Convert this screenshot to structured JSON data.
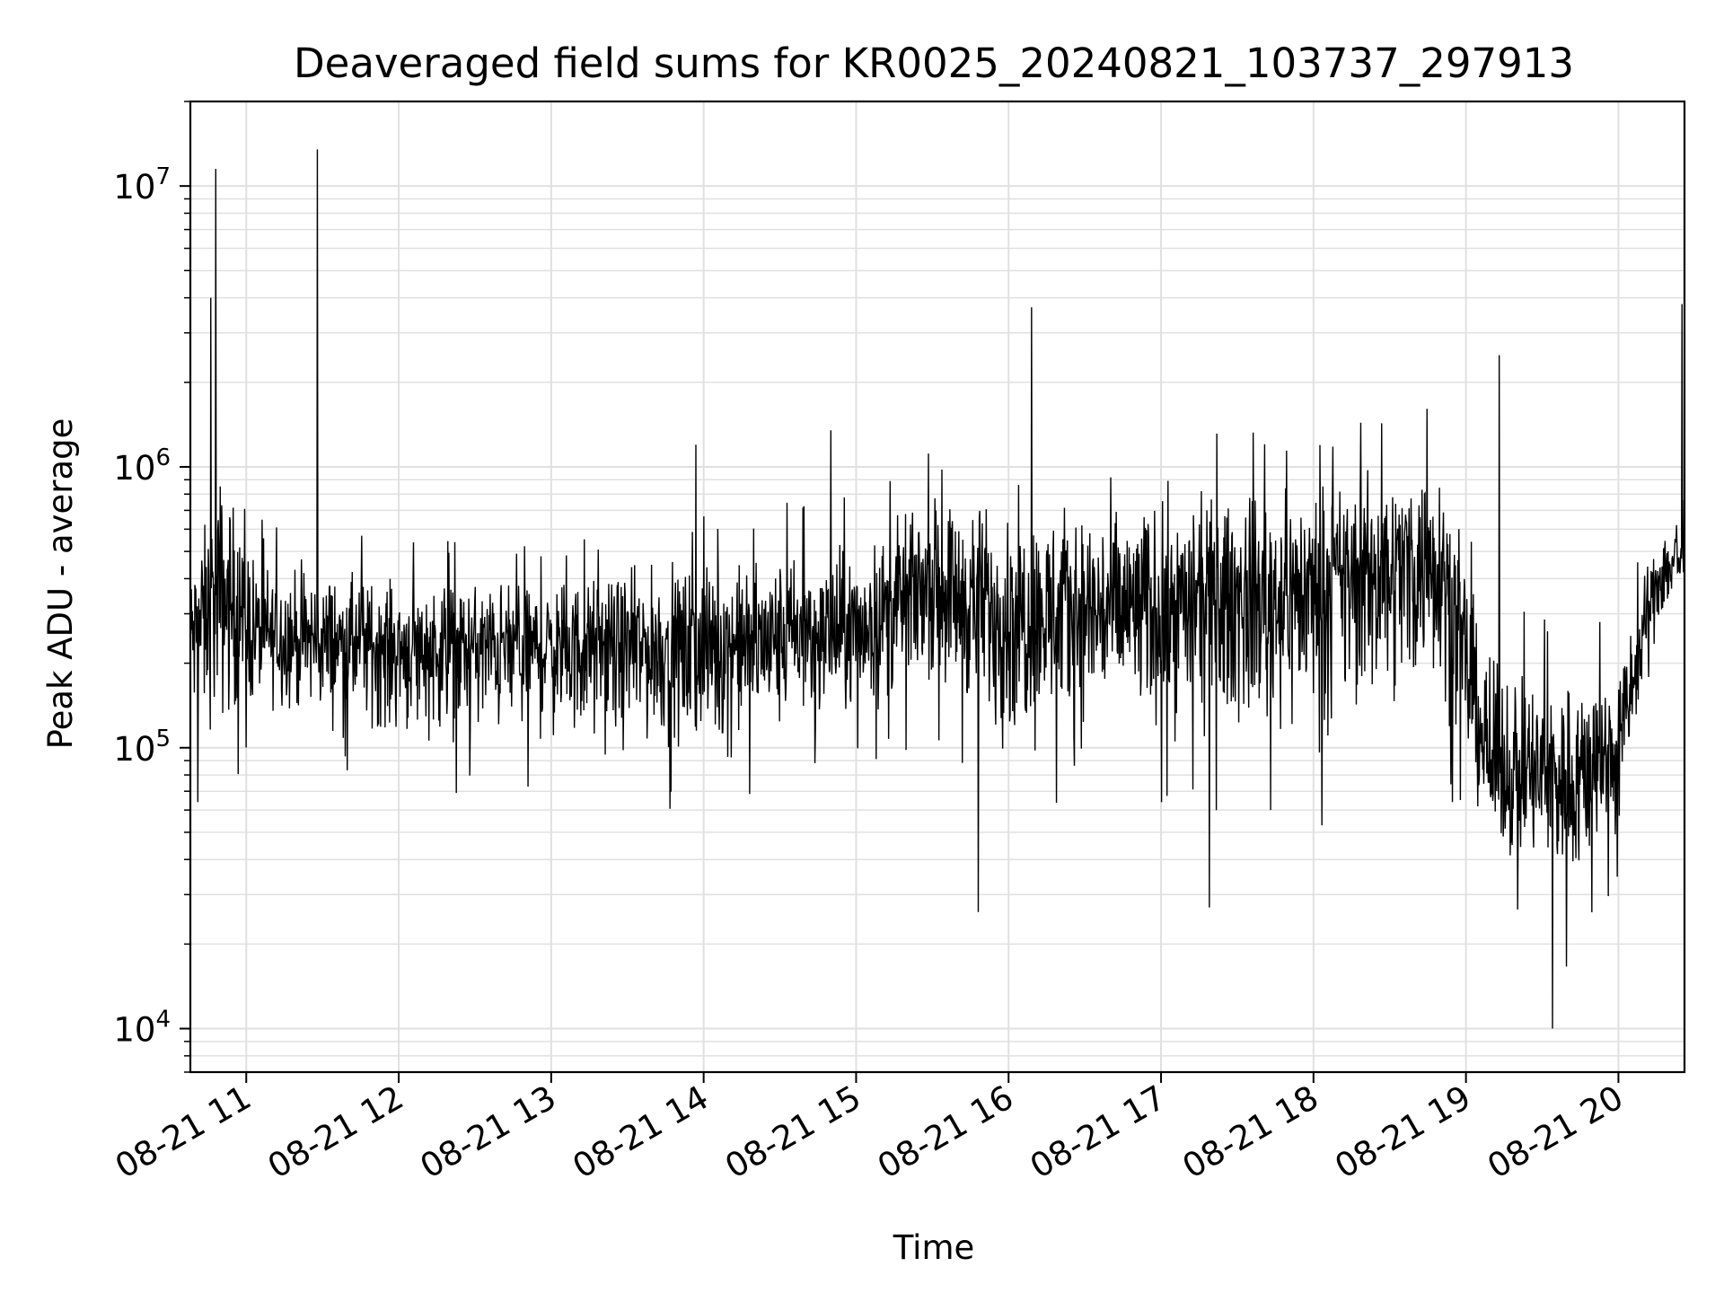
{
  "chart_data": {
    "type": "line",
    "title": "Deaveraged field sums for KR0025_20240821_103737_297913",
    "xlabel": "Time",
    "ylabel": "Peak ADU - average",
    "yscale": "log",
    "ylim": [
      7000,
      20000000
    ],
    "xlim": [
      "2024-08-21 10:38",
      "2024-08-21 20:26"
    ],
    "grid": true,
    "line_color": "#000000",
    "grid_color": "#e0e0e0",
    "x_ticks": [
      {
        "value": "2024-08-21 11:00",
        "label": "08-21 11"
      },
      {
        "value": "2024-08-21 12:00",
        "label": "08-21 12"
      },
      {
        "value": "2024-08-21 13:00",
        "label": "08-21 13"
      },
      {
        "value": "2024-08-21 14:00",
        "label": "08-21 14"
      },
      {
        "value": "2024-08-21 15:00",
        "label": "08-21 15"
      },
      {
        "value": "2024-08-21 16:00",
        "label": "08-21 16"
      },
      {
        "value": "2024-08-21 17:00",
        "label": "08-21 17"
      },
      {
        "value": "2024-08-21 18:00",
        "label": "08-21 18"
      },
      {
        "value": "2024-08-21 19:00",
        "label": "08-21 19"
      },
      {
        "value": "2024-08-21 20:00",
        "label": "08-21 20"
      }
    ],
    "y_ticks": [
      {
        "value": 10000,
        "base": "10",
        "exp": "4"
      },
      {
        "value": 100000,
        "base": "10",
        "exp": "5"
      },
      {
        "value": 1000000,
        "base": "10",
        "exp": "6"
      },
      {
        "value": 10000000,
        "base": "10",
        "exp": "7"
      }
    ],
    "series_profile": [
      {
        "t": "2024-08-21 10:38",
        "typical": 250000,
        "low": 60000,
        "high": 600000
      },
      {
        "t": "2024-08-21 10:50",
        "typical": 350000,
        "low": 60000,
        "high": 1900000
      },
      {
        "t": "2024-08-21 11:05",
        "typical": 250000,
        "low": 100000,
        "high": 700000
      },
      {
        "t": "2024-08-21 12:00",
        "typical": 230000,
        "low": 70000,
        "high": 550000
      },
      {
        "t": "2024-08-21 13:00",
        "typical": 230000,
        "low": 65000,
        "high": 550000
      },
      {
        "t": "2024-08-21 14:00",
        "typical": 230000,
        "low": 55000,
        "high": 700000
      },
      {
        "t": "2024-08-21 15:00",
        "typical": 260000,
        "low": 80000,
        "high": 800000
      },
      {
        "t": "2024-08-21 15:30",
        "typical": 400000,
        "low": 100000,
        "high": 1200000
      },
      {
        "t": "2024-08-21 16:00",
        "typical": 300000,
        "low": 50000,
        "high": 1300000
      },
      {
        "t": "2024-08-21 17:00",
        "typical": 320000,
        "low": 60000,
        "high": 1300000
      },
      {
        "t": "2024-08-21 18:00",
        "typical": 380000,
        "low": 50000,
        "high": 1400000
      },
      {
        "t": "2024-08-21 18:50",
        "typical": 500000,
        "low": 80000,
        "high": 1700000
      },
      {
        "t": "2024-08-21 19:10",
        "typical": 80000,
        "low": 30000,
        "high": 350000
      },
      {
        "t": "2024-08-21 19:40",
        "typical": 80000,
        "low": 15000,
        "high": 300000
      },
      {
        "t": "2024-08-21 20:00",
        "typical": 100000,
        "low": 30000,
        "high": 300000
      },
      {
        "t": "2024-08-21 20:15",
        "typical": 400000,
        "low": 200000,
        "high": 700000
      },
      {
        "t": "2024-08-21 20:26",
        "typical": 500000,
        "low": 250000,
        "high": 1300000
      }
    ],
    "spikes": [
      {
        "t": "2024-08-21 10:46",
        "value": 4000000
      },
      {
        "t": "2024-08-21 10:48",
        "value": 11500000
      },
      {
        "t": "2024-08-21 11:28",
        "value": 13500000
      },
      {
        "t": "2024-08-21 13:57",
        "value": 1200000
      },
      {
        "t": "2024-08-21 14:50",
        "value": 1350000
      },
      {
        "t": "2024-08-21 15:48",
        "value": 26000
      },
      {
        "t": "2024-08-21 16:09",
        "value": 3700000
      },
      {
        "t": "2024-08-21 17:19",
        "value": 27000
      },
      {
        "t": "2024-08-21 19:13",
        "value": 2500000
      },
      {
        "t": "2024-08-21 19:34",
        "value": 10000
      },
      {
        "t": "2024-08-21 20:25",
        "value": 3800000
      }
    ]
  }
}
